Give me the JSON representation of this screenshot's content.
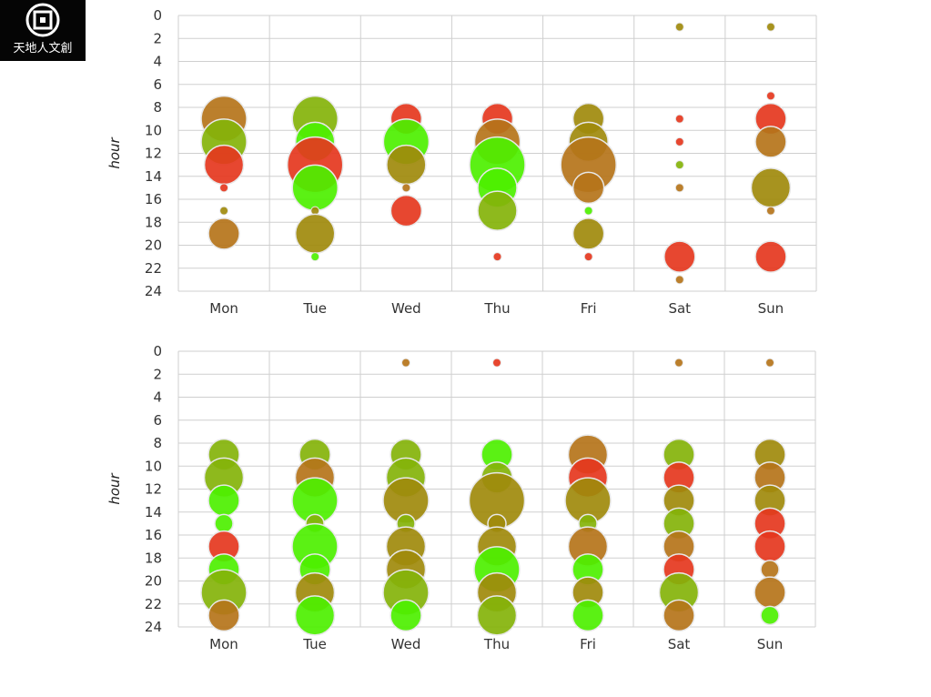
{
  "logo": {
    "text": "天地人文創",
    "icon": "square-emblem-icon"
  },
  "colors": {
    "grid": "#cfcfcf",
    "bubble_stroke": "#e8e8e8",
    "red": "#e5371e",
    "brown": "#b5741a",
    "olive": "#a08a0c",
    "yellowgreen": "#84b30a",
    "green": "#4df000"
  },
  "chart_data": [
    {
      "type": "scatter",
      "title": "",
      "xlabel": "",
      "ylabel": "hour",
      "categories": [
        "Mon",
        "Tue",
        "Wed",
        "Thu",
        "Fri",
        "Sat",
        "Sun"
      ],
      "ylim": [
        0,
        24
      ],
      "y_reversed": true,
      "yticks": [
        "0",
        "2",
        "4",
        "6",
        "8",
        "10",
        "12",
        "14",
        "16",
        "18",
        "20",
        "22",
        "24"
      ],
      "grid": true,
      "points": [
        {
          "day": "Mon",
          "hour": 9,
          "size": 5,
          "color": "brown"
        },
        {
          "day": "Mon",
          "hour": 11,
          "size": 5,
          "color": "yellowgreen"
        },
        {
          "day": "Mon",
          "hour": 13,
          "size": 4,
          "color": "red"
        },
        {
          "day": "Mon",
          "hour": 15,
          "size": 1,
          "color": "red"
        },
        {
          "day": "Mon",
          "hour": 17,
          "size": 1,
          "color": "olive"
        },
        {
          "day": "Mon",
          "hour": 19,
          "size": 3,
          "color": "brown"
        },
        {
          "day": "Tue",
          "hour": 9,
          "size": 5,
          "color": "yellowgreen"
        },
        {
          "day": "Tue",
          "hour": 11,
          "size": 4,
          "color": "green"
        },
        {
          "day": "Tue",
          "hour": 13,
          "size": 6,
          "color": "red"
        },
        {
          "day": "Tue",
          "hour": 15,
          "size": 5,
          "color": "green"
        },
        {
          "day": "Tue",
          "hour": 17,
          "size": 1,
          "color": "olive"
        },
        {
          "day": "Tue",
          "hour": 19,
          "size": 4,
          "color": "olive"
        },
        {
          "day": "Tue",
          "hour": 21,
          "size": 1,
          "color": "green"
        },
        {
          "day": "Wed",
          "hour": 9,
          "size": 3,
          "color": "red"
        },
        {
          "day": "Wed",
          "hour": 11,
          "size": 5,
          "color": "green"
        },
        {
          "day": "Wed",
          "hour": 13,
          "size": 4,
          "color": "olive"
        },
        {
          "day": "Wed",
          "hour": 15,
          "size": 1,
          "color": "brown"
        },
        {
          "day": "Wed",
          "hour": 17,
          "size": 3,
          "color": "red"
        },
        {
          "day": "Thu",
          "hour": 9,
          "size": 3,
          "color": "red"
        },
        {
          "day": "Thu",
          "hour": 11,
          "size": 5,
          "color": "brown"
        },
        {
          "day": "Thu",
          "hour": 13,
          "size": 6,
          "color": "green"
        },
        {
          "day": "Thu",
          "hour": 15,
          "size": 4,
          "color": "green"
        },
        {
          "day": "Thu",
          "hour": 17,
          "size": 4,
          "color": "yellowgreen"
        },
        {
          "day": "Thu",
          "hour": 21,
          "size": 1,
          "color": "red"
        },
        {
          "day": "Fri",
          "hour": 9,
          "size": 3,
          "color": "olive"
        },
        {
          "day": "Fri",
          "hour": 11,
          "size": 4,
          "color": "olive"
        },
        {
          "day": "Fri",
          "hour": 13,
          "size": 6,
          "color": "brown"
        },
        {
          "day": "Fri",
          "hour": 15,
          "size": 3,
          "color": "brown"
        },
        {
          "day": "Fri",
          "hour": 17,
          "size": 1,
          "color": "green"
        },
        {
          "day": "Fri",
          "hour": 19,
          "size": 3,
          "color": "olive"
        },
        {
          "day": "Fri",
          "hour": 21,
          "size": 1,
          "color": "red"
        },
        {
          "day": "Sat",
          "hour": 1,
          "size": 1,
          "color": "olive"
        },
        {
          "day": "Sat",
          "hour": 9,
          "size": 1,
          "color": "red"
        },
        {
          "day": "Sat",
          "hour": 11,
          "size": 1,
          "color": "red"
        },
        {
          "day": "Sat",
          "hour": 13,
          "size": 1,
          "color": "yellowgreen"
        },
        {
          "day": "Sat",
          "hour": 15,
          "size": 1,
          "color": "brown"
        },
        {
          "day": "Sat",
          "hour": 21,
          "size": 3,
          "color": "red"
        },
        {
          "day": "Sat",
          "hour": 23,
          "size": 1,
          "color": "brown"
        },
        {
          "day": "Sun",
          "hour": 1,
          "size": 1,
          "color": "olive"
        },
        {
          "day": "Sun",
          "hour": 7,
          "size": 1,
          "color": "red"
        },
        {
          "day": "Sun",
          "hour": 9,
          "size": 3,
          "color": "red"
        },
        {
          "day": "Sun",
          "hour": 11,
          "size": 3,
          "color": "brown"
        },
        {
          "day": "Sun",
          "hour": 15,
          "size": 4,
          "color": "olive"
        },
        {
          "day": "Sun",
          "hour": 17,
          "size": 1,
          "color": "brown"
        },
        {
          "day": "Sun",
          "hour": 21,
          "size": 3,
          "color": "red"
        }
      ]
    },
    {
      "type": "scatter",
      "title": "",
      "xlabel": "",
      "ylabel": "hour",
      "categories": [
        "Mon",
        "Tue",
        "Wed",
        "Thu",
        "Fri",
        "Sat",
        "Sun"
      ],
      "ylim": [
        0,
        24
      ],
      "y_reversed": true,
      "yticks": [
        "0",
        "2",
        "4",
        "6",
        "8",
        "10",
        "12",
        "14",
        "16",
        "18",
        "20",
        "22",
        "24"
      ],
      "grid": true,
      "points": [
        {
          "day": "Mon",
          "hour": 9,
          "size": 3,
          "color": "yellowgreen"
        },
        {
          "day": "Mon",
          "hour": 11,
          "size": 4,
          "color": "yellowgreen"
        },
        {
          "day": "Mon",
          "hour": 13,
          "size": 3,
          "color": "green"
        },
        {
          "day": "Mon",
          "hour": 15,
          "size": 2,
          "color": "green"
        },
        {
          "day": "Mon",
          "hour": 17,
          "size": 3,
          "color": "red"
        },
        {
          "day": "Mon",
          "hour": 19,
          "size": 3,
          "color": "green"
        },
        {
          "day": "Mon",
          "hour": 21,
          "size": 5,
          "color": "yellowgreen"
        },
        {
          "day": "Mon",
          "hour": 23,
          "size": 3,
          "color": "brown"
        },
        {
          "day": "Tue",
          "hour": 9,
          "size": 3,
          "color": "yellowgreen"
        },
        {
          "day": "Tue",
          "hour": 11,
          "size": 4,
          "color": "brown"
        },
        {
          "day": "Tue",
          "hour": 13,
          "size": 5,
          "color": "green"
        },
        {
          "day": "Tue",
          "hour": 15,
          "size": 2,
          "color": "yellowgreen"
        },
        {
          "day": "Tue",
          "hour": 17,
          "size": 5,
          "color": "green"
        },
        {
          "day": "Tue",
          "hour": 19,
          "size": 3,
          "color": "green"
        },
        {
          "day": "Tue",
          "hour": 21,
          "size": 4,
          "color": "olive"
        },
        {
          "day": "Tue",
          "hour": 23,
          "size": 4,
          "color": "green"
        },
        {
          "day": "Wed",
          "hour": 1,
          "size": 1,
          "color": "brown"
        },
        {
          "day": "Wed",
          "hour": 9,
          "size": 3,
          "color": "yellowgreen"
        },
        {
          "day": "Wed",
          "hour": 11,
          "size": 4,
          "color": "yellowgreen"
        },
        {
          "day": "Wed",
          "hour": 13,
          "size": 5,
          "color": "olive"
        },
        {
          "day": "Wed",
          "hour": 15,
          "size": 2,
          "color": "yellowgreen"
        },
        {
          "day": "Wed",
          "hour": 17,
          "size": 4,
          "color": "olive"
        },
        {
          "day": "Wed",
          "hour": 19,
          "size": 4,
          "color": "olive"
        },
        {
          "day": "Wed",
          "hour": 21,
          "size": 5,
          "color": "yellowgreen"
        },
        {
          "day": "Wed",
          "hour": 23,
          "size": 3,
          "color": "green"
        },
        {
          "day": "Thu",
          "hour": 1,
          "size": 1,
          "color": "red"
        },
        {
          "day": "Thu",
          "hour": 9,
          "size": 3,
          "color": "green"
        },
        {
          "day": "Thu",
          "hour": 11,
          "size": 3,
          "color": "yellowgreen"
        },
        {
          "day": "Thu",
          "hour": 13,
          "size": 6,
          "color": "olive"
        },
        {
          "day": "Thu",
          "hour": 15,
          "size": 2,
          "color": "olive"
        },
        {
          "day": "Thu",
          "hour": 17,
          "size": 4,
          "color": "olive"
        },
        {
          "day": "Thu",
          "hour": 19,
          "size": 5,
          "color": "green"
        },
        {
          "day": "Thu",
          "hour": 21,
          "size": 4,
          "color": "olive"
        },
        {
          "day": "Thu",
          "hour": 23,
          "size": 4,
          "color": "yellowgreen"
        },
        {
          "day": "Fri",
          "hour": 9,
          "size": 4,
          "color": "brown"
        },
        {
          "day": "Fri",
          "hour": 11,
          "size": 4,
          "color": "red"
        },
        {
          "day": "Fri",
          "hour": 13,
          "size": 5,
          "color": "olive"
        },
        {
          "day": "Fri",
          "hour": 15,
          "size": 2,
          "color": "yellowgreen"
        },
        {
          "day": "Fri",
          "hour": 17,
          "size": 4,
          "color": "brown"
        },
        {
          "day": "Fri",
          "hour": 19,
          "size": 3,
          "color": "green"
        },
        {
          "day": "Fri",
          "hour": 21,
          "size": 3,
          "color": "olive"
        },
        {
          "day": "Fri",
          "hour": 23,
          "size": 3,
          "color": "green"
        },
        {
          "day": "Sat",
          "hour": 1,
          "size": 1,
          "color": "brown"
        },
        {
          "day": "Sat",
          "hour": 9,
          "size": 3,
          "color": "yellowgreen"
        },
        {
          "day": "Sat",
          "hour": 11,
          "size": 3,
          "color": "red"
        },
        {
          "day": "Sat",
          "hour": 13,
          "size": 3,
          "color": "olive"
        },
        {
          "day": "Sat",
          "hour": 15,
          "size": 3,
          "color": "yellowgreen"
        },
        {
          "day": "Sat",
          "hour": 17,
          "size": 3,
          "color": "brown"
        },
        {
          "day": "Sat",
          "hour": 19,
          "size": 3,
          "color": "red"
        },
        {
          "day": "Sat",
          "hour": 21,
          "size": 4,
          "color": "yellowgreen"
        },
        {
          "day": "Sat",
          "hour": 23,
          "size": 3,
          "color": "brown"
        },
        {
          "day": "Sun",
          "hour": 1,
          "size": 1,
          "color": "brown"
        },
        {
          "day": "Sun",
          "hour": 9,
          "size": 3,
          "color": "olive"
        },
        {
          "day": "Sun",
          "hour": 11,
          "size": 3,
          "color": "brown"
        },
        {
          "day": "Sun",
          "hour": 13,
          "size": 3,
          "color": "olive"
        },
        {
          "day": "Sun",
          "hour": 15,
          "size": 3,
          "color": "red"
        },
        {
          "day": "Sun",
          "hour": 17,
          "size": 3,
          "color": "red"
        },
        {
          "day": "Sun",
          "hour": 19,
          "size": 2,
          "color": "brown"
        },
        {
          "day": "Sun",
          "hour": 21,
          "size": 3,
          "color": "brown"
        },
        {
          "day": "Sun",
          "hour": 23,
          "size": 2,
          "color": "green"
        }
      ]
    }
  ]
}
